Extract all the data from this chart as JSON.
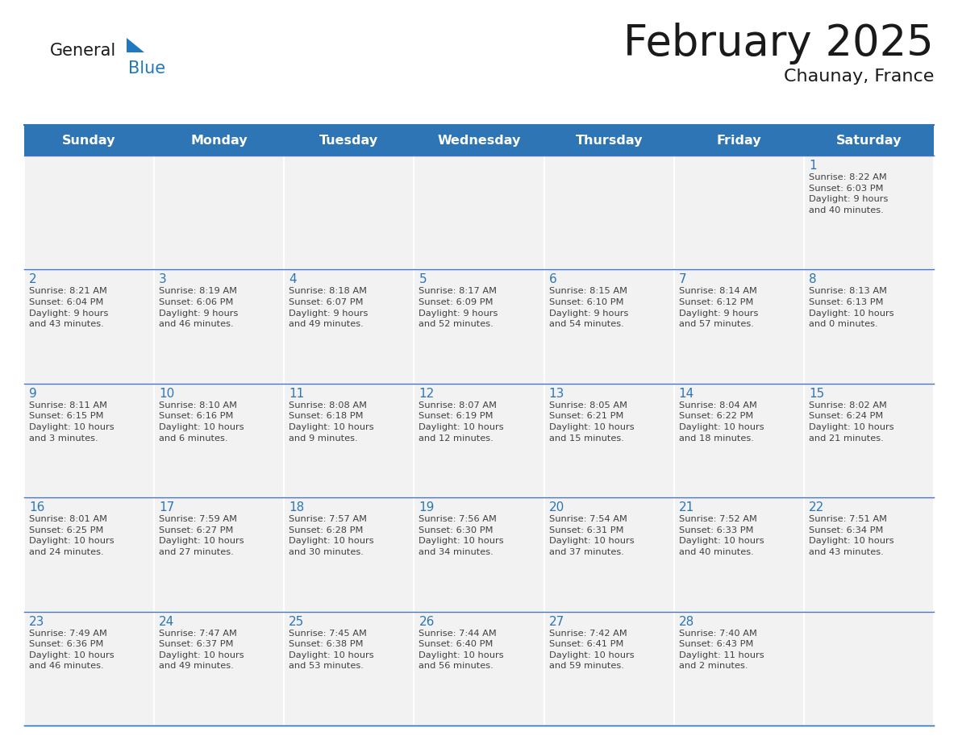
{
  "title": "February 2025",
  "subtitle": "Chaunay, France",
  "days_of_week": [
    "Sunday",
    "Monday",
    "Tuesday",
    "Wednesday",
    "Thursday",
    "Friday",
    "Saturday"
  ],
  "header_bg": "#2E75B6",
  "header_text_color": "#FFFFFF",
  "cell_bg": "#F2F2F2",
  "border_color": "#2E75B6",
  "line_color": "#4472C4",
  "text_color": "#404040",
  "day_number_color": "#2E75B6",
  "title_color": "#1a1a1a",
  "weeks": [
    [
      {
        "day": null,
        "info": null
      },
      {
        "day": null,
        "info": null
      },
      {
        "day": null,
        "info": null
      },
      {
        "day": null,
        "info": null
      },
      {
        "day": null,
        "info": null
      },
      {
        "day": null,
        "info": null
      },
      {
        "day": 1,
        "info": "Sunrise: 8:22 AM\nSunset: 6:03 PM\nDaylight: 9 hours\nand 40 minutes."
      }
    ],
    [
      {
        "day": 2,
        "info": "Sunrise: 8:21 AM\nSunset: 6:04 PM\nDaylight: 9 hours\nand 43 minutes."
      },
      {
        "day": 3,
        "info": "Sunrise: 8:19 AM\nSunset: 6:06 PM\nDaylight: 9 hours\nand 46 minutes."
      },
      {
        "day": 4,
        "info": "Sunrise: 8:18 AM\nSunset: 6:07 PM\nDaylight: 9 hours\nand 49 minutes."
      },
      {
        "day": 5,
        "info": "Sunrise: 8:17 AM\nSunset: 6:09 PM\nDaylight: 9 hours\nand 52 minutes."
      },
      {
        "day": 6,
        "info": "Sunrise: 8:15 AM\nSunset: 6:10 PM\nDaylight: 9 hours\nand 54 minutes."
      },
      {
        "day": 7,
        "info": "Sunrise: 8:14 AM\nSunset: 6:12 PM\nDaylight: 9 hours\nand 57 minutes."
      },
      {
        "day": 8,
        "info": "Sunrise: 8:13 AM\nSunset: 6:13 PM\nDaylight: 10 hours\nand 0 minutes."
      }
    ],
    [
      {
        "day": 9,
        "info": "Sunrise: 8:11 AM\nSunset: 6:15 PM\nDaylight: 10 hours\nand 3 minutes."
      },
      {
        "day": 10,
        "info": "Sunrise: 8:10 AM\nSunset: 6:16 PM\nDaylight: 10 hours\nand 6 minutes."
      },
      {
        "day": 11,
        "info": "Sunrise: 8:08 AM\nSunset: 6:18 PM\nDaylight: 10 hours\nand 9 minutes."
      },
      {
        "day": 12,
        "info": "Sunrise: 8:07 AM\nSunset: 6:19 PM\nDaylight: 10 hours\nand 12 minutes."
      },
      {
        "day": 13,
        "info": "Sunrise: 8:05 AM\nSunset: 6:21 PM\nDaylight: 10 hours\nand 15 minutes."
      },
      {
        "day": 14,
        "info": "Sunrise: 8:04 AM\nSunset: 6:22 PM\nDaylight: 10 hours\nand 18 minutes."
      },
      {
        "day": 15,
        "info": "Sunrise: 8:02 AM\nSunset: 6:24 PM\nDaylight: 10 hours\nand 21 minutes."
      }
    ],
    [
      {
        "day": 16,
        "info": "Sunrise: 8:01 AM\nSunset: 6:25 PM\nDaylight: 10 hours\nand 24 minutes."
      },
      {
        "day": 17,
        "info": "Sunrise: 7:59 AM\nSunset: 6:27 PM\nDaylight: 10 hours\nand 27 minutes."
      },
      {
        "day": 18,
        "info": "Sunrise: 7:57 AM\nSunset: 6:28 PM\nDaylight: 10 hours\nand 30 minutes."
      },
      {
        "day": 19,
        "info": "Sunrise: 7:56 AM\nSunset: 6:30 PM\nDaylight: 10 hours\nand 34 minutes."
      },
      {
        "day": 20,
        "info": "Sunrise: 7:54 AM\nSunset: 6:31 PM\nDaylight: 10 hours\nand 37 minutes."
      },
      {
        "day": 21,
        "info": "Sunrise: 7:52 AM\nSunset: 6:33 PM\nDaylight: 10 hours\nand 40 minutes."
      },
      {
        "day": 22,
        "info": "Sunrise: 7:51 AM\nSunset: 6:34 PM\nDaylight: 10 hours\nand 43 minutes."
      }
    ],
    [
      {
        "day": 23,
        "info": "Sunrise: 7:49 AM\nSunset: 6:36 PM\nDaylight: 10 hours\nand 46 minutes."
      },
      {
        "day": 24,
        "info": "Sunrise: 7:47 AM\nSunset: 6:37 PM\nDaylight: 10 hours\nand 49 minutes."
      },
      {
        "day": 25,
        "info": "Sunrise: 7:45 AM\nSunset: 6:38 PM\nDaylight: 10 hours\nand 53 minutes."
      },
      {
        "day": 26,
        "info": "Sunrise: 7:44 AM\nSunset: 6:40 PM\nDaylight: 10 hours\nand 56 minutes."
      },
      {
        "day": 27,
        "info": "Sunrise: 7:42 AM\nSunset: 6:41 PM\nDaylight: 10 hours\nand 59 minutes."
      },
      {
        "day": 28,
        "info": "Sunrise: 7:40 AM\nSunset: 6:43 PM\nDaylight: 11 hours\nand 2 minutes."
      },
      {
        "day": null,
        "info": null
      }
    ]
  ],
  "logo_text1": "General",
  "logo_text2": "Blue",
  "logo_color1": "#1a1a1a",
  "logo_color2": "#2079C0",
  "logo_triangle_color": "#2079C0"
}
